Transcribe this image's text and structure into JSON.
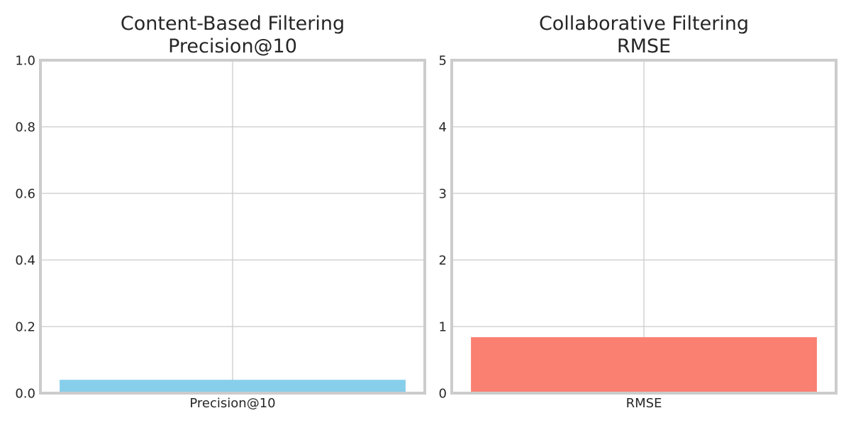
{
  "chart_data": [
    {
      "type": "bar",
      "title": "Content-Based Filtering\nPrecision@10",
      "categories": [
        "Precision@10"
      ],
      "values": [
        0.04
      ],
      "ylim": [
        0,
        1.0
      ],
      "yticks": [
        "0.0",
        "0.2",
        "0.4",
        "0.6",
        "0.8",
        "1.0"
      ],
      "ytick_values": [
        0,
        0.2,
        0.4,
        0.6,
        0.8,
        1.0
      ],
      "xlabel": "",
      "ylabel": "",
      "grid": true,
      "color": "#87ceeb"
    },
    {
      "type": "bar",
      "title": "Collaborative Filtering\nRMSE",
      "categories": [
        "RMSE"
      ],
      "values": [
        0.84
      ],
      "ylim": [
        0,
        5
      ],
      "yticks": [
        "0",
        "1",
        "2",
        "3",
        "4",
        "5"
      ],
      "ytick_values": [
        0,
        1,
        2,
        3,
        4,
        5
      ],
      "xlabel": "",
      "ylabel": "",
      "grid": true,
      "color": "#fa8072"
    }
  ]
}
